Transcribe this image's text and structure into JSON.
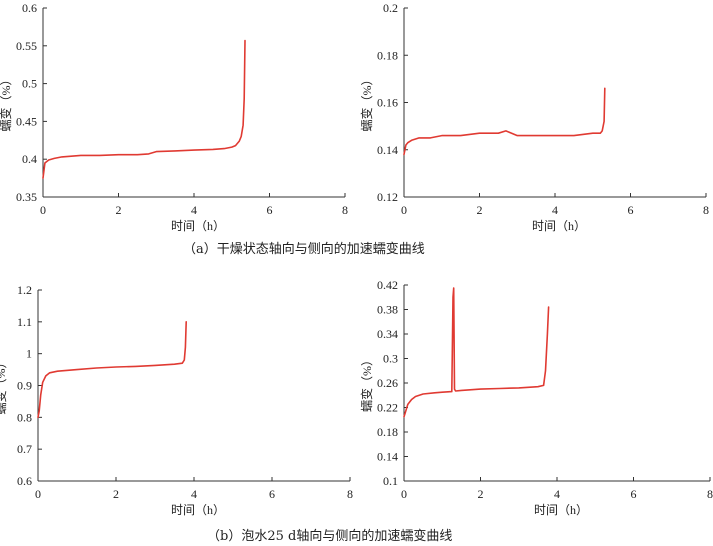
{
  "captions": {
    "top": "（a）干燥状态轴向与侧向的加速蠕变曲线",
    "bottom": "（b）泡水25 d轴向与侧向的加速蠕变曲线"
  },
  "colors": {
    "series": "#e03a32",
    "axis": "#333333"
  },
  "chart_data": [
    {
      "type": "line",
      "xlabel": "时间（h）",
      "ylabel": "蠕变（%）",
      "xlim": [
        0,
        8
      ],
      "ylim": [
        0.35,
        0.6
      ],
      "xticks": [
        0,
        2,
        4,
        6,
        8
      ],
      "yticks": [
        0.35,
        0.4,
        0.45,
        0.5,
        0.55,
        0.6
      ],
      "ytick_labels": [
        "0.35",
        "0.4",
        "0.45",
        "0.5",
        "0.55",
        "0.6"
      ],
      "grid": false,
      "series": [
        {
          "x": [
            0,
            0.05,
            0.15,
            0.3,
            0.5,
            1.0,
            1.5,
            2.0,
            2.5,
            2.8,
            3.0,
            3.5,
            4.0,
            4.5,
            4.8,
            5.0,
            5.1,
            5.2,
            5.25,
            5.3,
            5.33,
            5.35
          ],
          "y": [
            0.375,
            0.395,
            0.399,
            0.401,
            0.403,
            0.405,
            0.405,
            0.406,
            0.406,
            0.407,
            0.41,
            0.411,
            0.412,
            0.413,
            0.414,
            0.416,
            0.418,
            0.424,
            0.43,
            0.445,
            0.48,
            0.557
          ]
        }
      ]
    },
    {
      "type": "line",
      "xlabel": "时间（h）",
      "ylabel": "蠕变（%）",
      "xlim": [
        0,
        8
      ],
      "ylim": [
        0.12,
        0.2
      ],
      "xticks": [
        0,
        2,
        4,
        6,
        8
      ],
      "yticks": [
        0.12,
        0.14,
        0.16,
        0.18,
        0.2
      ],
      "ytick_labels": [
        "0.12",
        "0.14",
        "0.16",
        "0.18",
        "0.2"
      ],
      "grid": false,
      "series": [
        {
          "x": [
            0,
            0.05,
            0.1,
            0.2,
            0.4,
            0.7,
            1.0,
            1.5,
            2.0,
            2.5,
            2.7,
            3.0,
            3.5,
            4.0,
            4.5,
            5.0,
            5.2,
            5.25,
            5.3,
            5.32
          ],
          "y": [
            0.138,
            0.142,
            0.143,
            0.144,
            0.145,
            0.145,
            0.146,
            0.146,
            0.147,
            0.147,
            0.148,
            0.146,
            0.146,
            0.146,
            0.146,
            0.147,
            0.147,
            0.148,
            0.152,
            0.166
          ]
        }
      ]
    },
    {
      "type": "line",
      "xlabel": "时间（h）",
      "ylabel": "蠕变（%）",
      "xlim": [
        0,
        8
      ],
      "ylim": [
        0.6,
        1.2
      ],
      "xticks": [
        0,
        2,
        4,
        6,
        8
      ],
      "yticks": [
        0.6,
        0.7,
        0.8,
        0.9,
        1.0,
        1.1,
        1.2
      ],
      "ytick_labels": [
        "0.6",
        "0.7",
        "0.8",
        "0.9",
        "1",
        "1.1",
        "1.2"
      ],
      "grid": false,
      "series": [
        {
          "x": [
            0,
            0.03,
            0.07,
            0.12,
            0.2,
            0.3,
            0.5,
            1.0,
            1.5,
            2.0,
            2.5,
            3.0,
            3.5,
            3.7,
            3.75,
            3.78,
            3.8
          ],
          "y": [
            0.8,
            0.82,
            0.87,
            0.91,
            0.93,
            0.94,
            0.945,
            0.95,
            0.955,
            0.958,
            0.96,
            0.963,
            0.967,
            0.97,
            0.98,
            1.02,
            1.1
          ]
        }
      ]
    },
    {
      "type": "line",
      "xlabel": "时间（h）",
      "ylabel": "蠕变（%）",
      "xlim": [
        0,
        8
      ],
      "ylim": [
        0.1,
        0.42
      ],
      "xticks": [
        0,
        2,
        4,
        6,
        8
      ],
      "yticks": [
        0.1,
        0.14,
        0.18,
        0.22,
        0.26,
        0.3,
        0.34,
        0.38,
        0.42
      ],
      "ytick_labels": [
        "0.1",
        "0.14",
        "0.18",
        "0.22",
        "0.26",
        "0.3",
        "0.34",
        "0.38",
        "0.42"
      ],
      "grid": false,
      "series": [
        {
          "x": [
            0,
            0.05,
            0.1,
            0.2,
            0.3,
            0.5,
            0.8,
            1.0,
            1.25,
            1.28,
            1.3,
            1.32,
            1.35,
            1.5,
            2.0,
            2.5,
            3.0,
            3.5,
            3.65,
            3.7,
            3.75,
            3.78
          ],
          "y": [
            0.205,
            0.215,
            0.225,
            0.233,
            0.238,
            0.242,
            0.244,
            0.245,
            0.246,
            0.4,
            0.415,
            0.25,
            0.247,
            0.248,
            0.25,
            0.251,
            0.252,
            0.254,
            0.256,
            0.28,
            0.34,
            0.384
          ]
        }
      ]
    }
  ]
}
